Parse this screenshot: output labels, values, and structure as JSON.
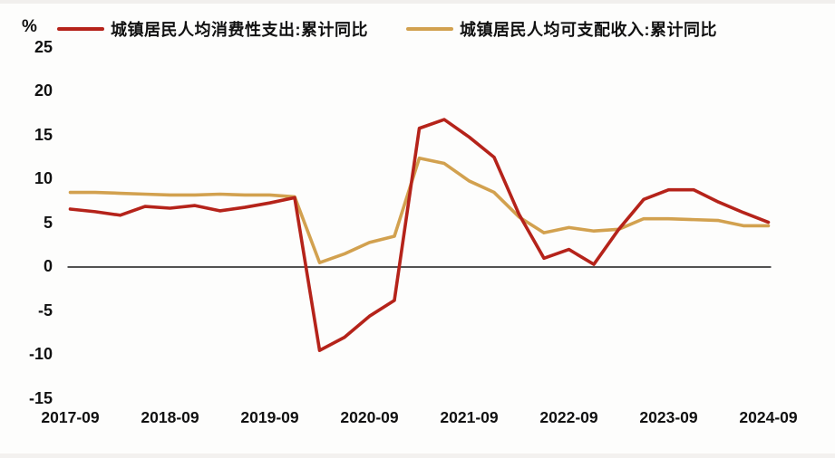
{
  "chart_data": {
    "type": "line",
    "title": "",
    "ylabel": "%",
    "xlabel": "",
    "ylim": [
      -15,
      25
    ],
    "grid": false,
    "legend_position": "top",
    "zero_line": true,
    "x": [
      "2017-09",
      "2017-12",
      "2018-03",
      "2018-06",
      "2018-09",
      "2018-12",
      "2019-03",
      "2019-06",
      "2019-09",
      "2019-12",
      "2020-03",
      "2020-06",
      "2020-09",
      "2020-12",
      "2021-03",
      "2021-06",
      "2021-09",
      "2021-12",
      "2022-03",
      "2022-06",
      "2022-09",
      "2022-12",
      "2023-03",
      "2023-06",
      "2023-09",
      "2023-12",
      "2024-03",
      "2024-06",
      "2024-09"
    ],
    "x_tick_labels": [
      "2017-09",
      "2018-09",
      "2019-09",
      "2020-09",
      "2021-09",
      "2022-09",
      "2023-09",
      "2024-09"
    ],
    "y_ticks": [
      25,
      20,
      15,
      10,
      5,
      0,
      -5,
      -10,
      -15
    ],
    "series": [
      {
        "name": "城镇居民人均消费性支出:累计同比",
        "color": "#b5231a",
        "values": [
          6.6,
          6.3,
          5.9,
          6.9,
          6.7,
          7.0,
          6.4,
          6.8,
          7.3,
          7.9,
          -9.5,
          -8.0,
          -5.6,
          -3.8,
          15.8,
          16.8,
          14.8,
          12.5,
          6.0,
          1.0,
          2.0,
          0.3,
          4.3,
          7.7,
          8.8,
          8.8,
          7.4,
          6.2,
          5.1
        ]
      },
      {
        "name": "城镇居民人均可支配收入:累计同比",
        "color": "#d2a14f",
        "values": [
          8.5,
          8.5,
          8.4,
          8.3,
          8.2,
          8.2,
          8.3,
          8.2,
          8.2,
          8.0,
          0.5,
          1.5,
          2.8,
          3.5,
          12.4,
          11.8,
          9.8,
          8.5,
          5.7,
          3.9,
          4.5,
          4.1,
          4.3,
          5.5,
          5.5,
          5.4,
          5.3,
          4.7,
          4.7
        ]
      }
    ],
    "axis_color": "#1a1a1a"
  }
}
